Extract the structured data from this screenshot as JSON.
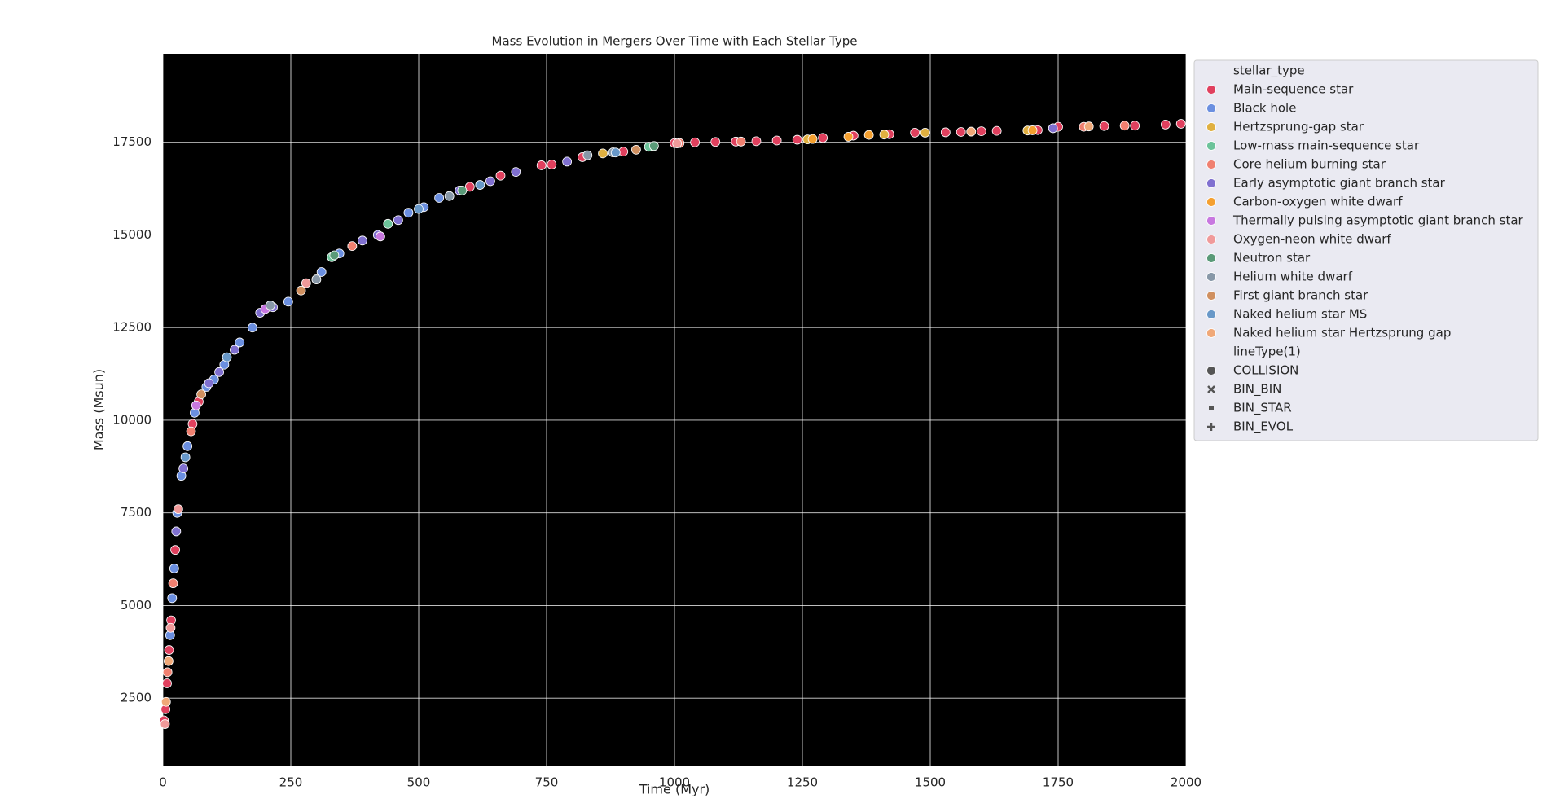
{
  "chart_data": {
    "type": "scatter",
    "title": "Mass Evolution in Mergers Over Time with Each Stellar Type",
    "x_label": "Time (Myr)",
    "y_label": "Mass (Msun)",
    "xlim": [
      0,
      2000
    ],
    "xticks": [
      0,
      250,
      500,
      750,
      1000,
      1250,
      1500,
      1750,
      2000
    ],
    "ylim": [
      680,
      19890
    ],
    "yticks": [
      2500,
      5000,
      7500,
      10000,
      12500,
      15000,
      17500
    ],
    "grid": true,
    "legend": "upper right",
    "legend_title": "stellar_type",
    "style_legend_title": "lineType(1)",
    "styles": [
      {
        "name": "COLLISION",
        "marker": "circle"
      },
      {
        "name": "BIN_BIN",
        "marker": "x"
      },
      {
        "name": "BIN_STAR",
        "marker": "square"
      },
      {
        "name": "BIN_EVOL",
        "marker": "plus"
      }
    ],
    "series": [
      {
        "name": "Main-sequence star",
        "color": "#e0405e",
        "x": [
          2,
          5,
          8,
          12,
          16,
          24,
          58,
          70,
          600,
          660,
          740,
          760,
          820,
          900,
          1000,
          1040,
          1080,
          1120,
          1160,
          1200,
          1240,
          1290,
          1350,
          1420,
          1470,
          1530,
          1560,
          1600,
          1630,
          1710,
          1750,
          1840,
          1900,
          1960,
          1990
        ],
        "values": [
          1900,
          2200,
          2900,
          3800,
          4600,
          6500,
          9900,
          10500,
          16300,
          16600,
          16880,
          16900,
          17100,
          17250,
          17480,
          17500,
          17510,
          17520,
          17530,
          17550,
          17570,
          17620,
          17680,
          17720,
          17760,
          17770,
          17780,
          17800,
          17810,
          17830,
          17920,
          17940,
          17950,
          17980,
          18000
        ]
      },
      {
        "name": "Black hole",
        "color": "#6b8fe0",
        "x": [
          14,
          18,
          22,
          28,
          36,
          48,
          62,
          85,
          100,
          120,
          150,
          175,
          245,
          310,
          345,
          480,
          510,
          540
        ],
        "values": [
          4200,
          5200,
          6000,
          7500,
          8500,
          9300,
          10200,
          10900,
          11100,
          11500,
          12100,
          12500,
          13200,
          14000,
          14500,
          15600,
          15750,
          16000
        ]
      },
      {
        "name": "Hertzsprung-gap star",
        "color": "#e0b040",
        "x": [
          860,
          1260,
          1410,
          1490,
          1690
        ],
        "values": [
          17200,
          17580,
          17710,
          17760,
          17820
        ]
      },
      {
        "name": "Low-mass main-sequence star",
        "color": "#6cc39a",
        "x": [
          330,
          440,
          950
        ],
        "values": [
          14400,
          15300,
          17380
        ]
      },
      {
        "name": "Core helium burning star",
        "color": "#f08070",
        "x": [
          9,
          20,
          55,
          370,
          1010,
          1130,
          1800,
          1880
        ],
        "values": [
          3200,
          5600,
          9700,
          14700,
          17480,
          17520,
          17920,
          17950
        ]
      },
      {
        "name": "Early asymptotic giant branch star",
        "color": "#8070d0",
        "x": [
          26,
          40,
          90,
          110,
          140,
          190,
          215,
          390,
          420,
          460,
          580,
          640,
          690,
          790,
          1740
        ],
        "values": [
          7000,
          8700,
          11000,
          11300,
          11900,
          12900,
          13050,
          14850,
          15000,
          15400,
          16200,
          16450,
          16700,
          16980,
          17880
        ]
      },
      {
        "name": "Carbon-oxygen white dwarf",
        "color": "#f5a030",
        "x": [
          1270,
          1340,
          1380,
          1700
        ],
        "values": [
          17590,
          17650,
          17700,
          17825
        ]
      },
      {
        "name": "Thermally pulsing asymptotic giant branch star",
        "color": "#c878e0",
        "x": [
          65,
          200,
          425
        ],
        "values": [
          10400,
          13000,
          14960
        ]
      },
      {
        "name": "Oxygen-neon white dwarf",
        "color": "#f09a9a",
        "x": [
          4,
          15,
          30,
          280,
          1005
        ],
        "values": [
          1800,
          4400,
          7600,
          13700,
          17470
        ]
      },
      {
        "name": "Neutron star",
        "color": "#5a9a78",
        "x": [
          335,
          585,
          960
        ],
        "values": [
          14450,
          16200,
          17400
        ]
      },
      {
        "name": "Helium white dwarf",
        "color": "#8898a8",
        "x": [
          210,
          300,
          560,
          830,
          880
        ],
        "values": [
          13100,
          13800,
          16050,
          17150,
          17230
        ]
      },
      {
        "name": "First giant branch star",
        "color": "#d09060",
        "x": [
          75,
          270,
          925
        ],
        "values": [
          10700,
          13500,
          17300
        ]
      },
      {
        "name": "Naked helium star MS",
        "color": "#6898c8",
        "x": [
          44,
          125,
          500,
          620,
          885
        ],
        "values": [
          9000,
          11700,
          15700,
          16350,
          17225
        ]
      },
      {
        "name": "Naked helium star Hertzsprung gap",
        "color": "#f0a878",
        "x": [
          6,
          11,
          1580,
          1810
        ],
        "values": [
          2400,
          3500,
          17790,
          17930
        ]
      }
    ]
  }
}
